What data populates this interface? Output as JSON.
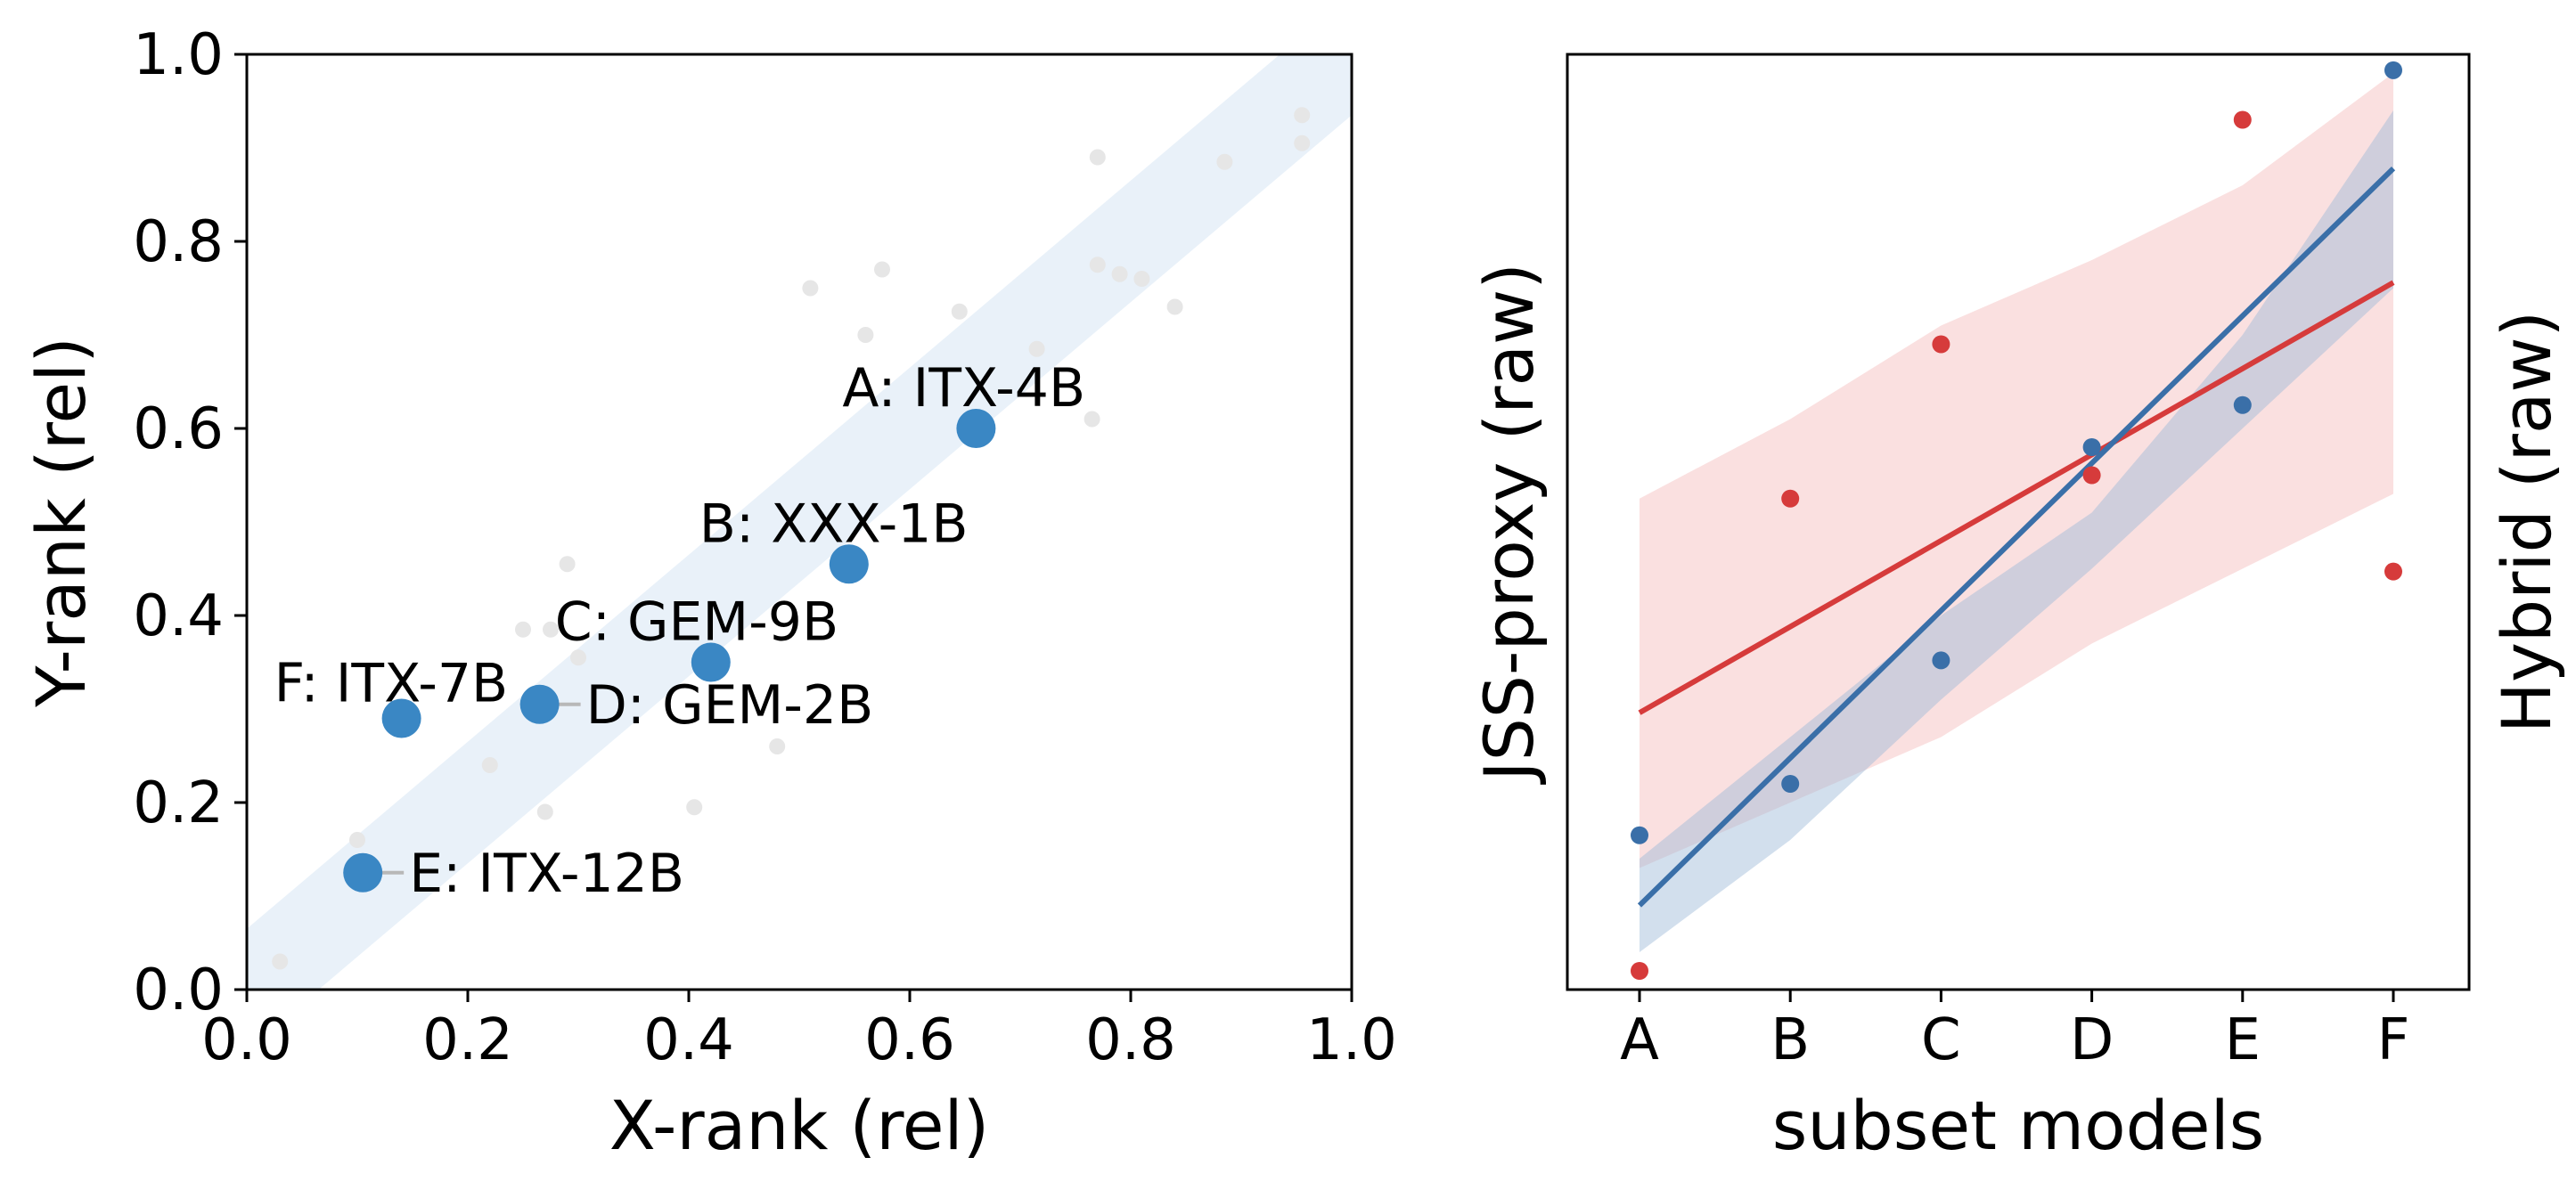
{
  "chart_data": [
    {
      "type": "scatter",
      "xlabel": "X-rank (rel)",
      "ylabel": "Y-rank (rel)",
      "xlim": [
        0.0,
        1.0
      ],
      "ylim": [
        0.0,
        1.0
      ],
      "xticks": [
        "0.0",
        "0.2",
        "0.4",
        "0.6",
        "0.8",
        "1.0"
      ],
      "yticks": [
        "0.0",
        "0.2",
        "0.4",
        "0.6",
        "0.8",
        "1.0"
      ],
      "grid": false,
      "band": {
        "description": "shaded diagonal band around y = x",
        "half_width": 0.065
      },
      "colors": {
        "highlight": "#3a87c4",
        "background_points": "#e6e6e6",
        "band": "#dbe8f5",
        "connector": "#b8b8b8"
      },
      "background_points": [
        {
          "x": 0.03,
          "y": 0.03
        },
        {
          "x": 0.1,
          "y": 0.16
        },
        {
          "x": 0.22,
          "y": 0.24
        },
        {
          "x": 0.25,
          "y": 0.385
        },
        {
          "x": 0.27,
          "y": 0.19
        },
        {
          "x": 0.275,
          "y": 0.385
        },
        {
          "x": 0.29,
          "y": 0.455
        },
        {
          "x": 0.3,
          "y": 0.355
        },
        {
          "x": 0.405,
          "y": 0.195
        },
        {
          "x": 0.48,
          "y": 0.26
        },
        {
          "x": 0.51,
          "y": 0.75
        },
        {
          "x": 0.56,
          "y": 0.7
        },
        {
          "x": 0.575,
          "y": 0.77
        },
        {
          "x": 0.645,
          "y": 0.725
        },
        {
          "x": 0.715,
          "y": 0.685
        },
        {
          "x": 0.765,
          "y": 0.61
        },
        {
          "x": 0.77,
          "y": 0.89
        },
        {
          "x": 0.77,
          "y": 0.775
        },
        {
          "x": 0.79,
          "y": 0.765
        },
        {
          "x": 0.81,
          "y": 0.76
        },
        {
          "x": 0.84,
          "y": 0.73
        },
        {
          "x": 0.885,
          "y": 0.885
        },
        {
          "x": 0.955,
          "y": 0.935
        },
        {
          "x": 0.955,
          "y": 0.905
        }
      ],
      "highlighted_points": [
        {
          "label": "A: ITX-4B",
          "x": 0.66,
          "y": 0.6
        },
        {
          "label": "B: XXX-1B",
          "x": 0.545,
          "y": 0.455
        },
        {
          "label": "C: GEM-9B",
          "x": 0.42,
          "y": 0.35
        },
        {
          "label": "D: GEM-2B",
          "x": 0.265,
          "y": 0.305
        },
        {
          "label": "E: ITX-12B",
          "x": 0.105,
          "y": 0.125
        },
        {
          "label": "F: ITX-7B",
          "x": 0.14,
          "y": 0.29
        }
      ]
    },
    {
      "type": "scatter",
      "xlabel": "subset models",
      "ylabel_left": "JSS-proxy (raw)",
      "ylabel_right": "Hybrid (raw)",
      "categories": [
        "A",
        "B",
        "C",
        "D",
        "E",
        "F"
      ],
      "y_ticks_shown": false,
      "ylim": [
        0.0,
        1.0
      ],
      "grid": false,
      "series": [
        {
          "name": "JSS-proxy (raw)",
          "color": "#3a6fa8",
          "band_color": "#9bb7d6",
          "values": [
            0.165,
            0.22,
            0.352,
            0.58,
            0.625,
            0.983
          ],
          "fit_line": {
            "start": 0.09,
            "end": 0.878
          },
          "confidence_band": {
            "lower": [
              0.04,
              0.16,
              0.31,
              0.45,
              0.6,
              0.75
            ],
            "upper": [
              0.14,
              0.27,
              0.4,
              0.51,
              0.7,
              0.94
            ]
          }
        },
        {
          "name": "Hybrid (raw)",
          "color": "#d63b3b",
          "band_color": "#f8d6d6",
          "values": [
            0.02,
            0.525,
            0.69,
            0.55,
            0.93,
            0.447
          ],
          "fit_line": {
            "start": 0.296,
            "end": 0.756
          },
          "confidence_band": {
            "lower": [
              0.13,
              0.2,
              0.27,
              0.37,
              0.45,
              0.53
            ],
            "upper": [
              0.525,
              0.61,
              0.71,
              0.78,
              0.86,
              0.98
            ]
          }
        }
      ]
    }
  ]
}
